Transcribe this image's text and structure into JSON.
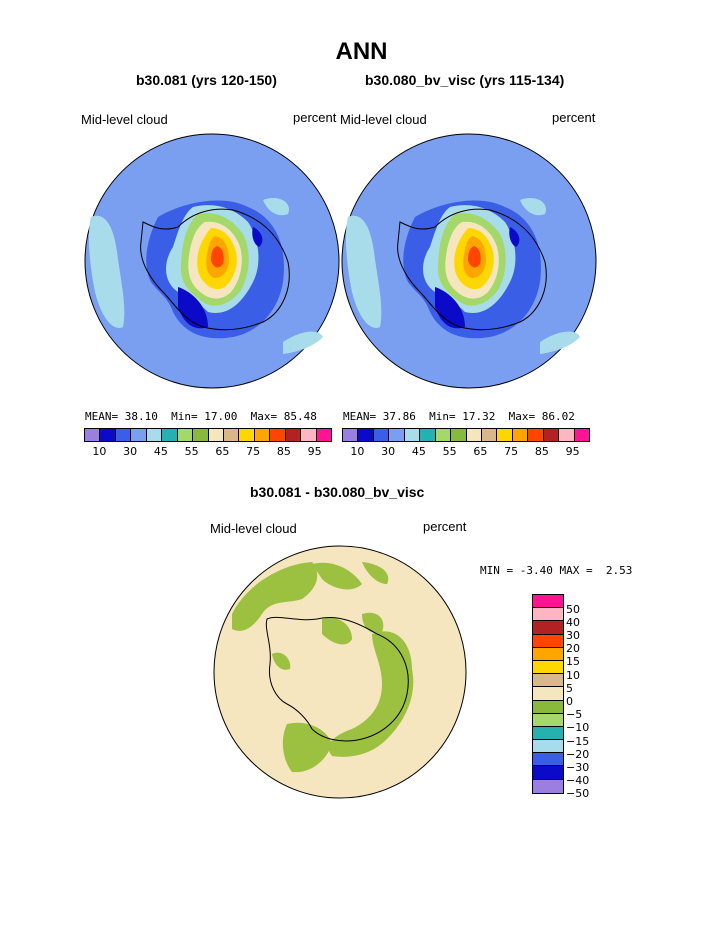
{
  "title": "ANN",
  "panels": [
    {
      "heading": "b30.081 (yrs 120-150)",
      "variable_label": "Mid-level cloud",
      "units_label": "percent",
      "stats": {
        "mean_label": "MEAN=",
        "mean": "38.10",
        "min_label": "Min=",
        "min": "17.00",
        "max_label": "Max=",
        "max": "85.48"
      }
    },
    {
      "heading": "b30.080_bv_visc (yrs 115-134)",
      "variable_label": "Mid-level cloud",
      "units_label": "percent",
      "stats": {
        "mean_label": "MEAN=",
        "mean": "37.86",
        "min_label": "Min=",
        "min": "17.32",
        "max_label": "Max=",
        "max": "86.02"
      }
    }
  ],
  "colorbar_top": {
    "colors": [
      "#9b7fe0",
      "#0a0ac8",
      "#3a5fe6",
      "#7a9ef0",
      "#a8dceb",
      "#26b0b0",
      "#a4d86a",
      "#88b83c",
      "#f5e6bf",
      "#d8b88a",
      "#ffd700",
      "#ffa500",
      "#ff4500",
      "#b22222",
      "#ffb6c1",
      "#ff1493"
    ],
    "tick_labels": [
      "10",
      "30",
      "45",
      "55",
      "65",
      "75",
      "85",
      "95"
    ]
  },
  "diff": {
    "heading": "b30.081 - b30.080_bv_visc",
    "variable_label": "Mid-level cloud",
    "units_label": "percent",
    "min_label": "MIN =",
    "min": "-3.40",
    "max_label": "MAX =",
    "max": "2.53"
  },
  "colorbar_diff": {
    "colors": [
      "#ff1493",
      "#ffb6c1",
      "#b22222",
      "#ff4500",
      "#ffa500",
      "#ffd700",
      "#d8b88a",
      "#f5e6bf",
      "#88b83c",
      "#a4d86a",
      "#26b0b0",
      "#a8dceb",
      "#3a5fe6",
      "#0a0ac8",
      "#9b7fe0"
    ],
    "tick_labels": [
      "50",
      "40",
      "30",
      "20",
      "15",
      "10",
      "5",
      "0",
      "−5",
      "−10",
      "−15",
      "−20",
      "−30",
      "−40",
      "−50"
    ]
  },
  "map_colors": {
    "ocean_blue": "#7a9ef0",
    "diff_base": "#f5e6bf",
    "diff_green": "#9cc040"
  }
}
